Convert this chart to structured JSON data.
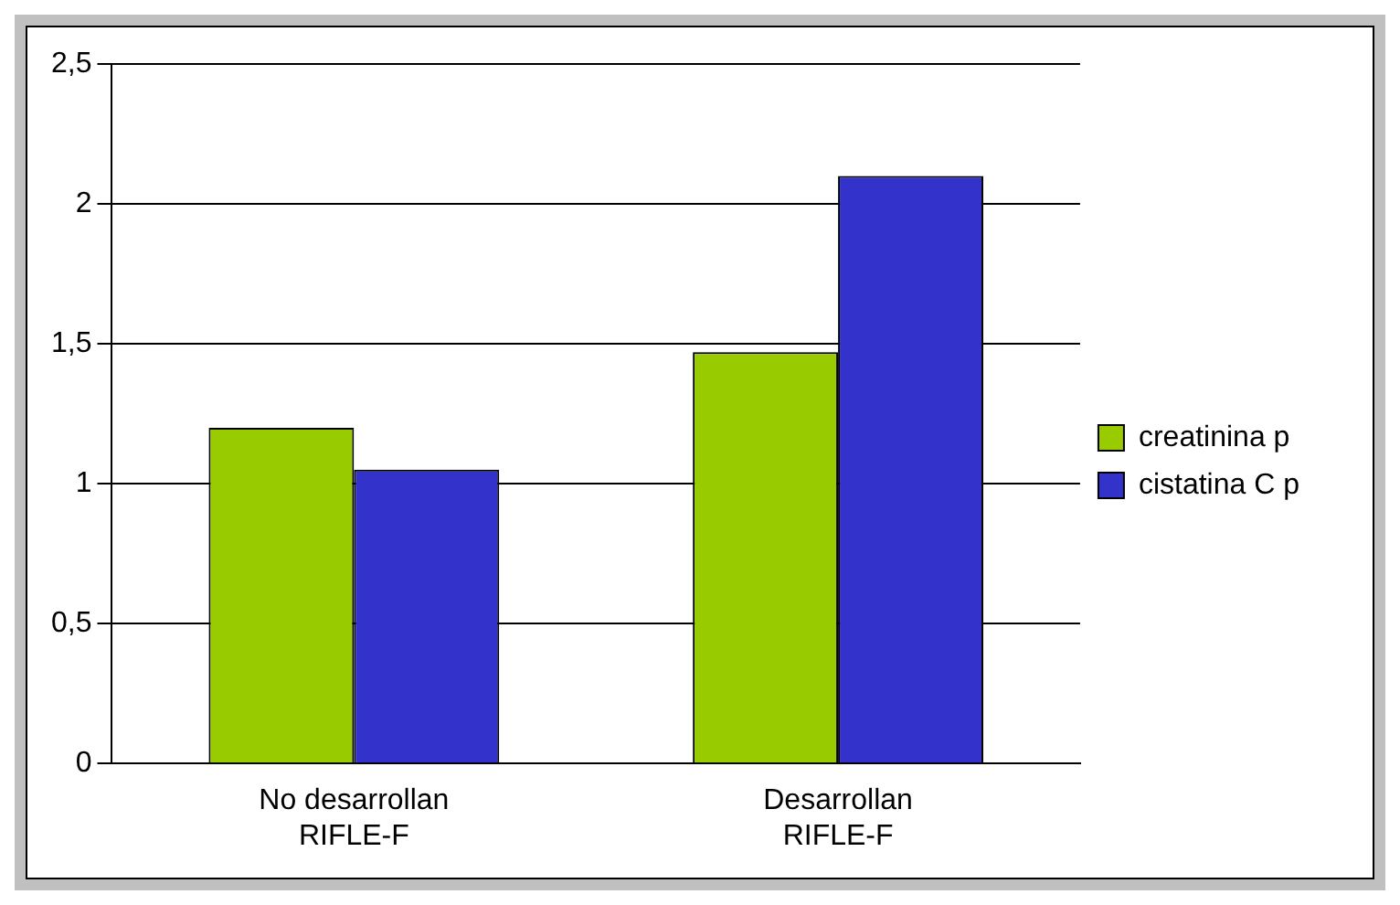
{
  "chart_data": {
    "type": "bar",
    "categories": [
      "No desarrollan RIFLE-F",
      "Desarrollan RIFLE-F"
    ],
    "series": [
      {
        "name": "creatinina p",
        "color": "#99cc00",
        "values": [
          1.2,
          1.47
        ]
      },
      {
        "name": "cistatina C p",
        "color": "#3333cc",
        "values": [
          1.05,
          2.1
        ]
      }
    ],
    "ylim": [
      0,
      2.5
    ],
    "yticks": [
      0,
      {
        "value": 0.5,
        "label": "0,5"
      },
      1,
      {
        "value": 1.5,
        "label": "1,5"
      },
      2,
      {
        "value": 2.5,
        "label": "2,5"
      }
    ],
    "grid": "y",
    "legend": "right"
  }
}
